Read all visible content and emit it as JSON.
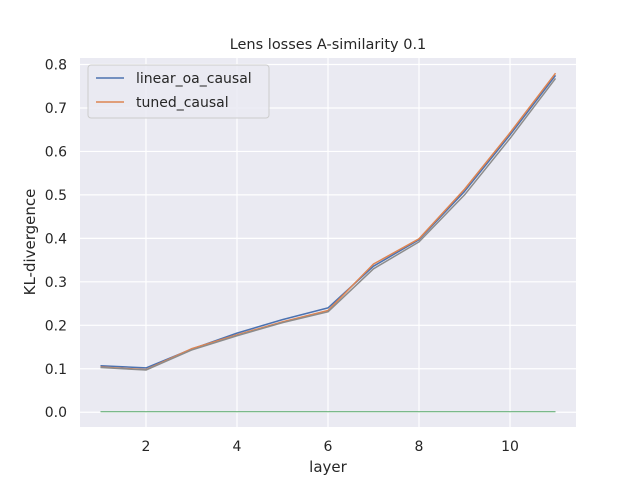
{
  "chart_data": {
    "type": "line",
    "title": "Lens losses A-similarity 0.1",
    "xlabel": "layer",
    "ylabel": "KL-divergence",
    "xlim": [
      0.55,
      11.45
    ],
    "ylim": [
      -0.034,
      0.815
    ],
    "xticks": [
      2,
      4,
      6,
      8,
      10
    ],
    "yticks": [
      0.0,
      0.1,
      0.2,
      0.3,
      0.4,
      0.5,
      0.6,
      0.7,
      0.8
    ],
    "grid": true,
    "legend_position": "top-left",
    "x": [
      1,
      2,
      3,
      4,
      5,
      6,
      7,
      8,
      9,
      10,
      11
    ],
    "series": [
      {
        "name": "linear_oa_causal",
        "color": "#4c72b0",
        "legend": true,
        "values": [
          0.107,
          0.102,
          0.145,
          0.182,
          0.213,
          0.24,
          0.336,
          0.397,
          0.508,
          0.638,
          0.775
        ]
      },
      {
        "name": "tuned_causal",
        "color": "#dd8452",
        "legend": true,
        "values": [
          0.104,
          0.098,
          0.146,
          0.178,
          0.208,
          0.234,
          0.341,
          0.399,
          0.513,
          0.643,
          0.78
        ]
      },
      {
        "color": "#55a868",
        "legend": false,
        "values": [
          0.001,
          0.001,
          0.001,
          0.001,
          0.001,
          0.001,
          0.001,
          0.001,
          0.001,
          0.001,
          0.001
        ]
      },
      {
        "color": "#8c8c8c",
        "legend": false,
        "values": [
          0.103,
          0.097,
          0.143,
          0.176,
          0.206,
          0.231,
          0.33,
          0.392,
          0.5,
          0.63,
          0.768
        ]
      }
    ]
  }
}
